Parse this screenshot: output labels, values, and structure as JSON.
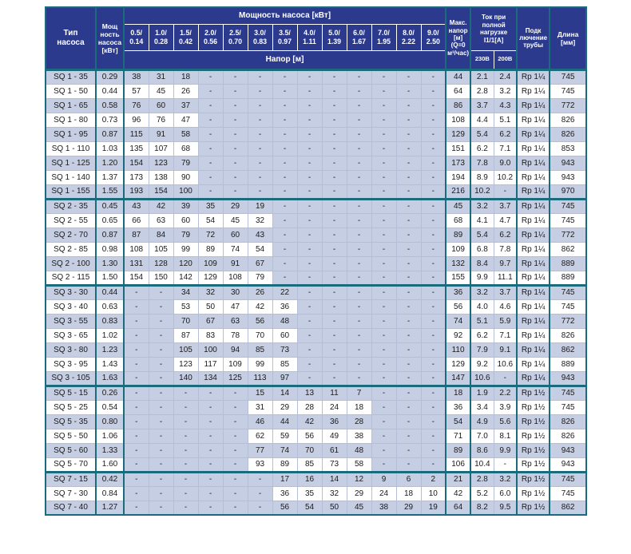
{
  "colors": {
    "header_bg": "#2c3a8e",
    "border_teal": "#1a6b7c",
    "row_shaded": "#c6cee4",
    "grid_line": "#b4bed6"
  },
  "table": {
    "header": {
      "pump_type": "Тип\nнасоса",
      "pump_power": "Мощ\nность\nнасоса\n[кВт]",
      "flow_group": "Мощность насоса [кВт]",
      "head_row": "Напор [м]",
      "max_head": "Макс.\nнапор\n[м]\n(Q=0\nм³/час)",
      "full_load_current": "Ток при\nполной\nнагрузке\nI1/1[A]",
      "voltage_230": "230В",
      "voltage_200": "200В",
      "pipe_connection": "Подк\nлючение\nтрубы",
      "length": "Длина\n[мм]",
      "flow_pairs": [
        "0.5/\n0.14",
        "1.0/\n0.28",
        "1.5/\n0.42",
        "2.0/\n0.56",
        "2.5/\n0.70",
        "3.0/\n0.83",
        "3.5/\n0.97",
        "4.0/\n1.11",
        "5.0/\n1.39",
        "6.0/\n1.67",
        "7.0/\n1.95",
        "8.0/\n2.22",
        "9.0/\n2.50"
      ]
    },
    "sections": [
      {
        "series": "SQ 1",
        "rows": [
          {
            "type": "SQ 1 - 35",
            "power": "0.29",
            "heads": [
              "38",
              "31",
              "18",
              "-",
              "-",
              "-",
              "-",
              "-",
              "-",
              "-",
              "-",
              "-",
              "-"
            ],
            "max_head": "44",
            "current_230": "2.1",
            "current_200": "2.4",
            "pipe": "Rp 1¼",
            "length": "745"
          },
          {
            "type": "SQ 1 - 50",
            "power": "0.44",
            "heads": [
              "57",
              "45",
              "26",
              "-",
              "-",
              "-",
              "-",
              "-",
              "-",
              "-",
              "-",
              "-",
              "-"
            ],
            "max_head": "64",
            "current_230": "2.8",
            "current_200": "3.2",
            "pipe": "Rp 1¼",
            "length": "745"
          },
          {
            "type": "SQ 1 - 65",
            "power": "0.58",
            "heads": [
              "76",
              "60",
              "37",
              "-",
              "-",
              "-",
              "-",
              "-",
              "-",
              "-",
              "-",
              "-",
              "-"
            ],
            "max_head": "86",
            "current_230": "3.7",
            "current_200": "4.3",
            "pipe": "Rp 1¼",
            "length": "772"
          },
          {
            "type": "SQ 1 - 80",
            "power": "0.73",
            "heads": [
              "96",
              "76",
              "47",
              "-",
              "-",
              "-",
              "-",
              "-",
              "-",
              "-",
              "-",
              "-",
              "-"
            ],
            "max_head": "108",
            "current_230": "4.4",
            "current_200": "5.1",
            "pipe": "Rp 1¼",
            "length": "826"
          },
          {
            "type": "SQ 1 - 95",
            "power": "0.87",
            "heads": [
              "115",
              "91",
              "58",
              "-",
              "-",
              "-",
              "-",
              "-",
              "-",
              "-",
              "-",
              "-",
              "-"
            ],
            "max_head": "129",
            "current_230": "5.4",
            "current_200": "6.2",
            "pipe": "Rp 1¼",
            "length": "826"
          },
          {
            "type": "SQ 1 - 110",
            "power": "1.03",
            "heads": [
              "135",
              "107",
              "68",
              "-",
              "-",
              "-",
              "-",
              "-",
              "-",
              "-",
              "-",
              "-",
              "-"
            ],
            "max_head": "151",
            "current_230": "6.2",
            "current_200": "7.1",
            "pipe": "Rp 1¼",
            "length": "853"
          },
          {
            "type": "SQ 1 - 125",
            "power": "1.20",
            "heads": [
              "154",
              "123",
              "79",
              "-",
              "-",
              "-",
              "-",
              "-",
              "-",
              "-",
              "-",
              "-",
              "-"
            ],
            "max_head": "173",
            "current_230": "7.8",
            "current_200": "9.0",
            "pipe": "Rp 1¼",
            "length": "943"
          },
          {
            "type": "SQ 1 - 140",
            "power": "1.37",
            "heads": [
              "173",
              "138",
              "90",
              "-",
              "-",
              "-",
              "-",
              "-",
              "-",
              "-",
              "-",
              "-",
              "-"
            ],
            "max_head": "194",
            "current_230": "8.9",
            "current_200": "10.2",
            "pipe": "Rp 1¼",
            "length": "943"
          },
          {
            "type": "SQ 1 - 155",
            "power": "1.55",
            "heads": [
              "193",
              "154",
              "100",
              "-",
              "-",
              "-",
              "-",
              "-",
              "-",
              "-",
              "-",
              "-",
              "-"
            ],
            "max_head": "216",
            "current_230": "10.2",
            "current_200": "-",
            "pipe": "Rp 1¼",
            "length": "970"
          }
        ]
      },
      {
        "series": "SQ 2",
        "rows": [
          {
            "type": "SQ 2 - 35",
            "power": "0.45",
            "heads": [
              "43",
              "42",
              "39",
              "35",
              "29",
              "19",
              "-",
              "-",
              "-",
              "-",
              "-",
              "-",
              "-"
            ],
            "max_head": "45",
            "current_230": "3.2",
            "current_200": "3.7",
            "pipe": "Rp 1¼",
            "length": "745"
          },
          {
            "type": "SQ 2 - 55",
            "power": "0.65",
            "heads": [
              "66",
              "63",
              "60",
              "54",
              "45",
              "32",
              "-",
              "-",
              "-",
              "-",
              "-",
              "-",
              "-"
            ],
            "max_head": "68",
            "current_230": "4.1",
            "current_200": "4.7",
            "pipe": "Rp 1¼",
            "length": "745"
          },
          {
            "type": "SQ 2 - 70",
            "power": "0.87",
            "heads": [
              "87",
              "84",
              "79",
              "72",
              "60",
              "43",
              "-",
              "-",
              "-",
              "-",
              "-",
              "-",
              "-"
            ],
            "max_head": "89",
            "current_230": "5.4",
            "current_200": "6.2",
            "pipe": "Rp 1¼",
            "length": "772"
          },
          {
            "type": "SQ 2 - 85",
            "power": "0.98",
            "heads": [
              "108",
              "105",
              "99",
              "89",
              "74",
              "54",
              "-",
              "-",
              "-",
              "-",
              "-",
              "-",
              "-"
            ],
            "max_head": "109",
            "current_230": "6.8",
            "current_200": "7.8",
            "pipe": "Rp 1¼",
            "length": "862"
          },
          {
            "type": "SQ 2 - 100",
            "power": "1.30",
            "heads": [
              "131",
              "128",
              "120",
              "109",
              "91",
              "67",
              "-",
              "-",
              "-",
              "-",
              "-",
              "-",
              "-"
            ],
            "max_head": "132",
            "current_230": "8.4",
            "current_200": "9.7",
            "pipe": "Rp 1¼",
            "length": "889"
          },
          {
            "type": "SQ 2 - 115",
            "power": "1.50",
            "heads": [
              "154",
              "150",
              "142",
              "129",
              "108",
              "79",
              "-",
              "-",
              "-",
              "-",
              "-",
              "-",
              "-"
            ],
            "max_head": "155",
            "current_230": "9.9",
            "current_200": "11.1",
            "pipe": "Rp 1¼",
            "length": "889"
          }
        ]
      },
      {
        "series": "SQ 3",
        "rows": [
          {
            "type": "SQ 3 - 30",
            "power": "0.44",
            "heads": [
              "-",
              "-",
              "34",
              "32",
              "30",
              "26",
              "22",
              "-",
              "-",
              "-",
              "-",
              "-",
              "-"
            ],
            "max_head": "36",
            "current_230": "3.2",
            "current_200": "3.7",
            "pipe": "Rp 1¼",
            "length": "745"
          },
          {
            "type": "SQ 3 - 40",
            "power": "0.63",
            "heads": [
              "-",
              "-",
              "53",
              "50",
              "47",
              "42",
              "36",
              "-",
              "-",
              "-",
              "-",
              "-",
              "-"
            ],
            "max_head": "56",
            "current_230": "4.0",
            "current_200": "4.6",
            "pipe": "Rp 1¼",
            "length": "745"
          },
          {
            "type": "SQ 3 - 55",
            "power": "0.83",
            "heads": [
              "-",
              "-",
              "70",
              "67",
              "63",
              "56",
              "48",
              "-",
              "-",
              "-",
              "-",
              "-",
              "-"
            ],
            "max_head": "74",
            "current_230": "5.1",
            "current_200": "5.9",
            "pipe": "Rp 1¼",
            "length": "772"
          },
          {
            "type": "SQ 3 - 65",
            "power": "1.02",
            "heads": [
              "-",
              "-",
              "87",
              "83",
              "78",
              "70",
              "60",
              "-",
              "-",
              "-",
              "-",
              "-",
              "-"
            ],
            "max_head": "92",
            "current_230": "6.2",
            "current_200": "7.1",
            "pipe": "Rp 1¼",
            "length": "826"
          },
          {
            "type": "SQ 3 - 80",
            "power": "1.23",
            "heads": [
              "-",
              "-",
              "105",
              "100",
              "94",
              "85",
              "73",
              "-",
              "-",
              "-",
              "-",
              "-",
              "-"
            ],
            "max_head": "110",
            "current_230": "7.9",
            "current_200": "9.1",
            "pipe": "Rp 1¼",
            "length": "862"
          },
          {
            "type": "SQ 3 - 95",
            "power": "1.43",
            "heads": [
              "-",
              "-",
              "123",
              "117",
              "109",
              "99",
              "85",
              "-",
              "-",
              "-",
              "-",
              "-",
              "-"
            ],
            "max_head": "129",
            "current_230": "9.2",
            "current_200": "10.6",
            "pipe": "Rp 1¼",
            "length": "889"
          },
          {
            "type": "SQ 3 - 105",
            "power": "1.63",
            "heads": [
              "-",
              "-",
              "140",
              "134",
              "125",
              "113",
              "97",
              "-",
              "-",
              "-",
              "-",
              "-",
              "-"
            ],
            "max_head": "147",
            "current_230": "10.6",
            "current_200": "-",
            "pipe": "Rp 1¼",
            "length": "943"
          }
        ]
      },
      {
        "series": "SQ 5",
        "rows": [
          {
            "type": "SQ 5 - 15",
            "power": "0.26",
            "heads": [
              "-",
              "-",
              "-",
              "-",
              "-",
              "15",
              "14",
              "13",
              "11",
              "7",
              "-",
              "-",
              "-"
            ],
            "max_head": "18",
            "current_230": "1.9",
            "current_200": "2.2",
            "pipe": "Rp 1½",
            "length": "745"
          },
          {
            "type": "SQ 5 - 25",
            "power": "0.54",
            "heads": [
              "-",
              "-",
              "-",
              "-",
              "-",
              "31",
              "29",
              "28",
              "24",
              "18",
              "-",
              "-",
              "-"
            ],
            "max_head": "36",
            "current_230": "3.4",
            "current_200": "3.9",
            "pipe": "Rp 1½",
            "length": "745"
          },
          {
            "type": "SQ 5 - 35",
            "power": "0.80",
            "heads": [
              "-",
              "-",
              "-",
              "-",
              "-",
              "46",
              "44",
              "42",
              "36",
              "28",
              "-",
              "-",
              "-"
            ],
            "max_head": "54",
            "current_230": "4.9",
            "current_200": "5.6",
            "pipe": "Rp 1½",
            "length": "826"
          },
          {
            "type": "SQ 5 - 50",
            "power": "1.06",
            "heads": [
              "-",
              "-",
              "-",
              "-",
              "-",
              "62",
              "59",
              "56",
              "49",
              "38",
              "-",
              "-",
              "-"
            ],
            "max_head": "71",
            "current_230": "7.0",
            "current_200": "8.1",
            "pipe": "Rp 1½",
            "length": "826"
          },
          {
            "type": "SQ 5 - 60",
            "power": "1.33",
            "heads": [
              "-",
              "-",
              "-",
              "-",
              "-",
              "77",
              "74",
              "70",
              "61",
              "48",
              "-",
              "-",
              "-"
            ],
            "max_head": "89",
            "current_230": "8.6",
            "current_200": "9.9",
            "pipe": "Rp 1½",
            "length": "943"
          },
          {
            "type": "SQ 5 - 70",
            "power": "1.60",
            "heads": [
              "-",
              "-",
              "-",
              "-",
              "-",
              "93",
              "89",
              "85",
              "73",
              "58",
              "-",
              "-",
              "-"
            ],
            "max_head": "106",
            "current_230": "10.4",
            "current_200": "-",
            "pipe": "Rp 1½",
            "length": "943"
          }
        ]
      },
      {
        "series": "SQ 7",
        "rows": [
          {
            "type": "SQ 7 - 15",
            "power": "0.42",
            "heads": [
              "-",
              "-",
              "-",
              "-",
              "-",
              "-",
              "17",
              "16",
              "14",
              "12",
              "9",
              "6",
              "2"
            ],
            "max_head": "21",
            "current_230": "2.8",
            "current_200": "3.2",
            "pipe": "Rp 1½",
            "length": "745"
          },
          {
            "type": "SQ 7 - 30",
            "power": "0.84",
            "heads": [
              "-",
              "-",
              "-",
              "-",
              "-",
              "-",
              "36",
              "35",
              "32",
              "29",
              "24",
              "18",
              "10"
            ],
            "max_head": "42",
            "current_230": "5.2",
            "current_200": "6.0",
            "pipe": "Rp 1½",
            "length": "745"
          },
          {
            "type": "SQ 7 - 40",
            "power": "1.27",
            "heads": [
              "-",
              "-",
              "-",
              "-",
              "-",
              "-",
              "56",
              "54",
              "50",
              "45",
              "38",
              "29",
              "19"
            ],
            "max_head": "64",
            "current_230": "8.2",
            "current_200": "9.5",
            "pipe": "Rp 1½",
            "length": "862"
          }
        ]
      }
    ]
  }
}
